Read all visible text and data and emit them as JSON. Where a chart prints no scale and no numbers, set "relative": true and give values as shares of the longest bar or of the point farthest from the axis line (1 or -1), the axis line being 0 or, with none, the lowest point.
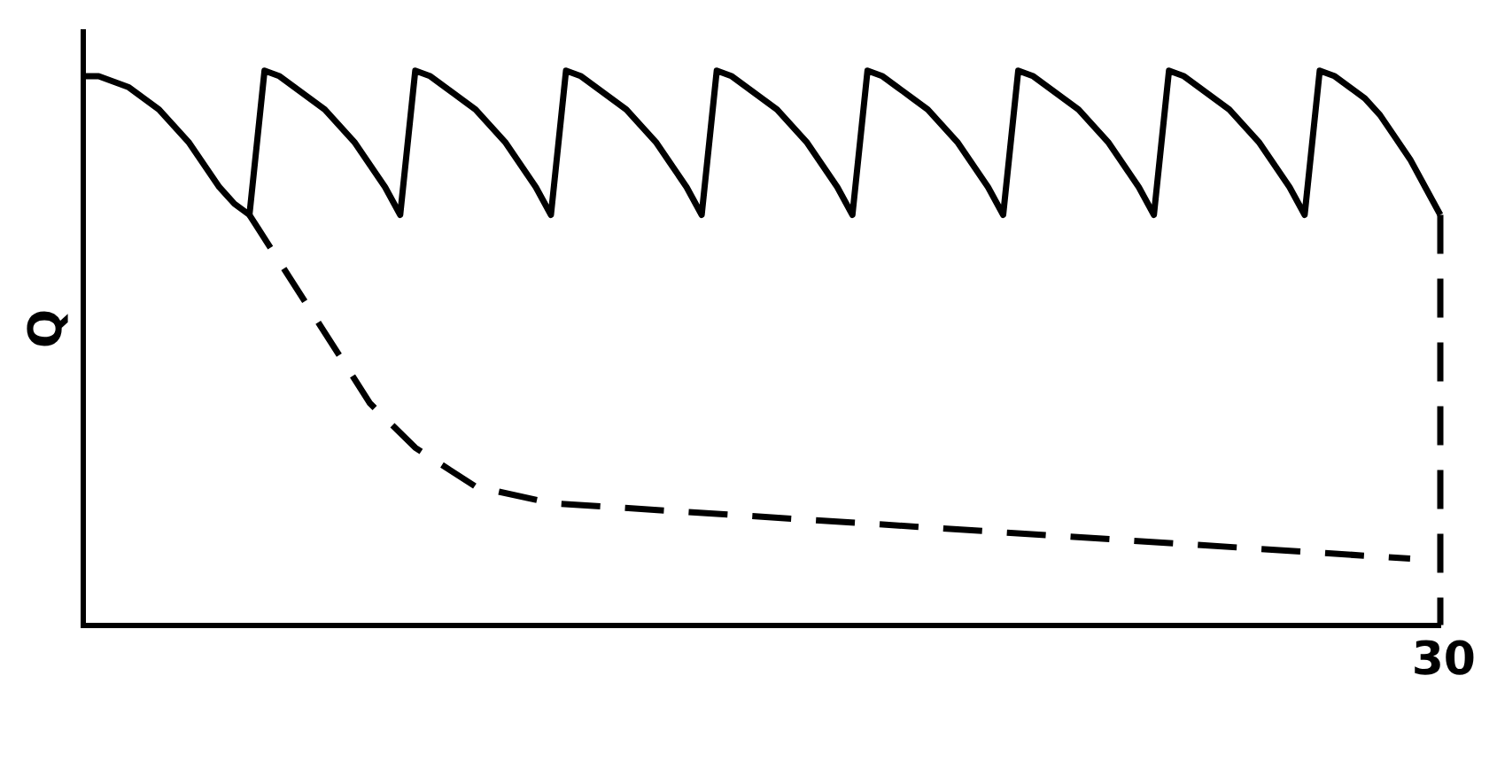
{
  "chart_data": {
    "type": "line",
    "ylabel": "Q",
    "relative": true,
    "marker": "none",
    "categories": [
      null,
      null,
      null,
      null,
      null,
      null,
      null,
      null,
      null,
      null,
      null,
      null,
      null,
      null,
      null,
      null,
      null,
      null,
      null,
      null,
      null,
      null,
      null,
      null,
      null,
      null,
      null,
      null,
      null,
      null,
      null,
      null,
      null,
      null,
      null,
      null,
      null,
      null,
      null,
      null,
      null,
      null,
      null,
      null,
      null,
      null,
      null,
      null,
      null,
      null,
      null,
      null,
      null,
      null,
      null,
      null,
      null,
      null,
      null,
      null,
      null,
      null,
      null,
      null,
      null,
      null,
      null,
      null,
      null,
      null,
      null,
      null,
      null,
      null,
      null,
      null,
      null,
      null,
      null,
      null,
      null,
      null,
      null,
      null,
      null,
      null,
      null,
      null,
      null,
      null,
      null
    ],
    "annotations": [
      "30"
    ],
    "series": [
      {
        "color": "#000000",
        "line_style": "solid",
        "values": [
          0.99,
          0.99,
          0.98,
          0.97,
          0.95,
          0.93,
          0.9,
          0.87,
          0.83,
          0.79,
          0.76,
          0.74,
          1,
          0.99,
          0.97,
          0.95,
          0.93,
          0.9,
          0.87,
          0.83,
          0.79,
          0.74,
          1,
          0.99,
          0.97,
          0.95,
          0.93,
          0.9,
          0.87,
          0.83,
          0.79,
          0.74,
          1,
          0.99,
          0.97,
          0.95,
          0.93,
          0.9,
          0.87,
          0.83,
          0.79,
          0.74,
          1,
          0.99,
          0.97,
          0.95,
          0.93,
          0.9,
          0.87,
          0.83,
          0.79,
          0.74,
          1,
          0.99,
          0.97,
          0.95,
          0.93,
          0.9,
          0.87,
          0.83,
          0.79,
          0.74,
          1,
          0.99,
          0.97,
          0.95,
          0.93,
          0.9,
          0.87,
          0.83,
          0.79,
          0.74,
          1,
          0.99,
          0.97,
          0.95,
          0.93,
          0.9,
          0.87,
          0.83,
          0.79,
          0.74,
          1,
          0.99,
          0.97,
          0.95,
          0.92,
          0.88,
          0.84,
          0.79,
          0.74
        ]
      },
      {
        "color": "#000000",
        "line_style": "dashed",
        "values": [
          null,
          null,
          null,
          null,
          null,
          null,
          null,
          null,
          null,
          null,
          null,
          0.74,
          null,
          null,
          null,
          0.57,
          null,
          null,
          null,
          0.4,
          null,
          null,
          0.32,
          null,
          null,
          null,
          0.25,
          null,
          null,
          null,
          null,
          0.22,
          null,
          null,
          null,
          null,
          null,
          null,
          null,
          null,
          null,
          null,
          null,
          null,
          null,
          null,
          null,
          null,
          null,
          null,
          null,
          null,
          null,
          null,
          null,
          null,
          null,
          null,
          null,
          null,
          null,
          null,
          null,
          null,
          null,
          null,
          null,
          null,
          null,
          null,
          null,
          null,
          null,
          null,
          null,
          null,
          null,
          null,
          null,
          null,
          null,
          null,
          null,
          null,
          null,
          null,
          null,
          null,
          0.12,
          null,
          null
        ]
      }
    ]
  }
}
